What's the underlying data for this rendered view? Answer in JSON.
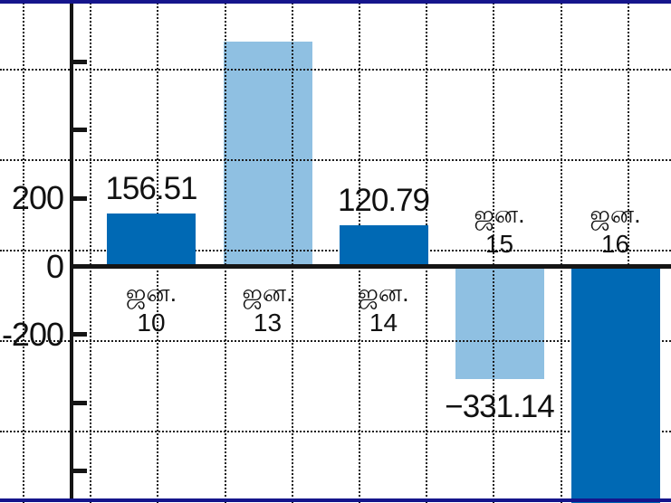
{
  "chart_data": {
    "type": "bar",
    "title": "",
    "xlabel": "",
    "ylabel": "",
    "categories": [
      {
        "line1": "ஜன.",
        "line2": "10",
        "label_side": "below-axis"
      },
      {
        "line1": "ஜன.",
        "line2": "13",
        "label_side": "below-axis"
      },
      {
        "line1": "ஜன.",
        "line2": "14",
        "label_side": "below-axis"
      },
      {
        "line1": "ஜன.",
        "line2": "15",
        "label_side": "above-axis"
      },
      {
        "line1": "ஜன.",
        "line2": "16",
        "label_side": "above-axis"
      }
    ],
    "values": [
      156.51,
      660,
      120.79,
      -331.14,
      -700
    ],
    "value_labels": [
      "156.51",
      "",
      "120.79",
      "−331.14",
      ""
    ],
    "value_estimated_from_pixels": [
      false,
      true,
      false,
      false,
      true
    ],
    "bar_clipped_at_bottom": [
      false,
      false,
      false,
      false,
      true
    ],
    "bar_palette": [
      "dark",
      "light",
      "dark",
      "light",
      "dark"
    ],
    "y_axis": {
      "ticks": [
        {
          "value": 600,
          "label": ""
        },
        {
          "value": 400,
          "label": ""
        },
        {
          "value": 200,
          "label": "200"
        },
        {
          "value": 0,
          "label": "0"
        },
        {
          "value": -200,
          "label": "-200"
        },
        {
          "value": -400,
          "label": ""
        },
        {
          "value": -600,
          "label": ""
        }
      ],
      "visible_range": [
        -690,
        775
      ]
    },
    "layout": {
      "grid": "dotted graph-paper grid, horizontal and vertical",
      "legend": "none",
      "zero_baseline": true,
      "frame": "navy horizontal rules at top and bottom"
    },
    "colors": {
      "dark_bar": "#0069b4",
      "light_bar": "#8fc0e2",
      "axis": "#151515",
      "grid": "#1c1c1c",
      "text": "#111111",
      "frame": "#15158c",
      "background": "#ffffff"
    }
  }
}
